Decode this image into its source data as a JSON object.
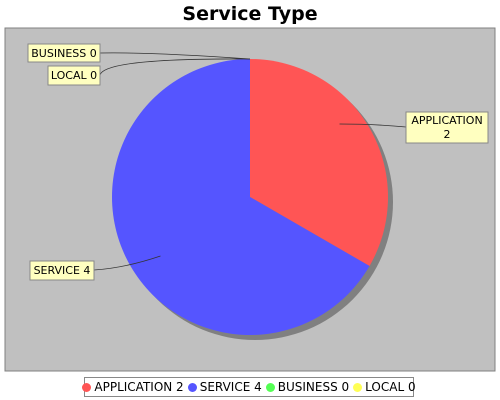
{
  "chart_data": {
    "type": "pie",
    "title": "Service Type",
    "slices": [
      {
        "label": "APPLICATION",
        "value": 2,
        "color": "#ff5555"
      },
      {
        "label": "SERVICE",
        "value": 4,
        "color": "#5555ff"
      },
      {
        "label": "BUSINESS",
        "value": 0,
        "color": "#55ff55"
      },
      {
        "label": "LOCAL",
        "value": 0,
        "color": "#ffff55"
      }
    ],
    "callouts": [
      {
        "label": "BUSINESS 0"
      },
      {
        "label": "LOCAL 0"
      },
      {
        "label": "APPLICATION",
        "value_text": "2"
      },
      {
        "label": "SERVICE 4"
      }
    ],
    "legend": [
      {
        "label": "APPLICATION 2",
        "color": "#ff5555"
      },
      {
        "label": "SERVICE 4",
        "color": "#5555ff"
      },
      {
        "label": "BUSINESS 0",
        "color": "#55ff55"
      },
      {
        "label": "LOCAL 0",
        "color": "#ffff55"
      }
    ],
    "legend_position": "bottom",
    "plot_background": "#c0c0c0"
  }
}
